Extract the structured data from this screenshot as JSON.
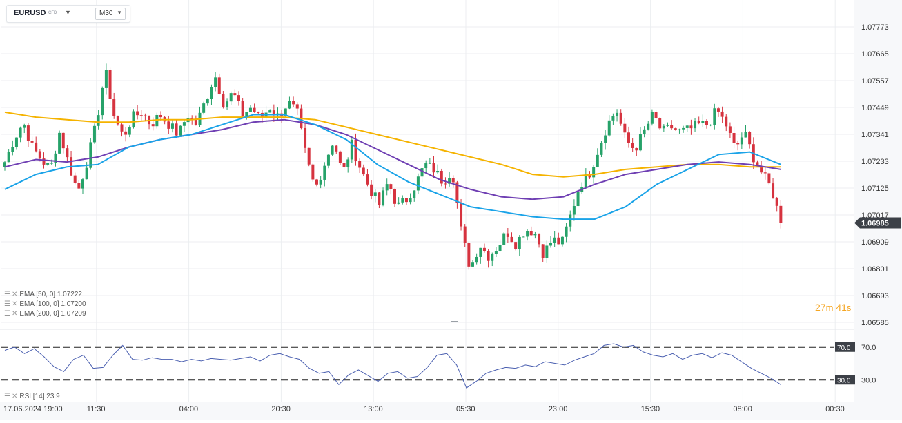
{
  "toolbar": {
    "symbol": "EURUSD",
    "instrument_type": "CFD",
    "symbol_dropdown_icon": "caret-down",
    "timeframe": "M30",
    "timeframe_dropdown_icon": "caret-down"
  },
  "price_axis": {
    "labels": [
      "1.07773",
      "1.07665",
      "1.07557",
      "1.07449",
      "1.07341",
      "1.07233",
      "1.07125",
      "1.07017",
      "1.06909",
      "1.06801",
      "1.06693",
      "1.06585"
    ]
  },
  "current_price": {
    "label": "1.06985",
    "value": 1.06985
  },
  "time_axis": {
    "labels": [
      "17.06.2024  19:00",
      "11:30",
      "04:00",
      "20:30",
      "13:00",
      "05:30",
      "23:00",
      "15:30",
      "08:00",
      "00:30"
    ]
  },
  "countdown": {
    "minutes": "27",
    "m_unit": "m",
    "seconds": "41",
    "s_unit": "s"
  },
  "indicators": [
    {
      "text": "EMA  [50,  0]  1.07222",
      "value": 1.07222,
      "color": "#1aa3e8"
    },
    {
      "text": "EMA  [100,  0]  1.07200",
      "value": 1.072,
      "color": "#6f3fb3"
    },
    {
      "text": "EMA  [200,  0]  1.07209",
      "value": 1.07209,
      "color": "#f5b300"
    }
  ],
  "rsi": {
    "text": "RSI  [14]  23.9",
    "value": 23.9,
    "upper_label": "70.0",
    "lower_label": "30.0",
    "upper_axis_label": "70.0",
    "lower_axis_label": "30.0"
  },
  "colors": {
    "bull": "#26a269",
    "bear": "#d6333f",
    "rsi_line": "#4a5fb0",
    "grid": "#eceef1",
    "countdown": "#f5a623"
  },
  "chart_data": {
    "type": "candlestick",
    "symbol": "EURUSD",
    "timeframe": "M30",
    "y_range": [
      1.06585,
      1.07881
    ],
    "anchor_closes": [
      1.0723,
      1.0732,
      1.0739,
      1.0729,
      1.0724,
      1.072,
      1.0735,
      1.0722,
      1.0711,
      1.0723,
      1.0738,
      1.076,
      1.0741,
      1.0733,
      1.0741,
      1.0743,
      1.0738,
      1.0742,
      1.0738,
      1.0734,
      1.0742,
      1.0738,
      1.0748,
      1.0758,
      1.0746,
      1.0751,
      1.0742,
      1.0745,
      1.074,
      1.0745,
      1.0741,
      1.0747,
      1.0743,
      1.0725,
      1.0712,
      1.0722,
      1.0732,
      1.0718,
      1.073,
      1.072,
      1.0712,
      1.0706,
      1.0715,
      1.0705,
      1.0708,
      1.0714,
      1.0722,
      1.072,
      1.0715,
      1.072,
      1.0695,
      1.068,
      1.069,
      1.0685,
      1.0689,
      1.0695,
      1.069,
      1.0696,
      1.0695,
      1.0686,
      1.0692,
      1.069,
      1.0702,
      1.0714,
      1.0718,
      1.0728,
      1.0738,
      1.0744,
      1.0732,
      1.0728,
      1.0735,
      1.0742,
      1.0735,
      1.0737,
      1.0735,
      1.0736,
      1.0738,
      1.0738,
      1.0744,
      1.0738,
      1.0728,
      1.0735,
      1.0725,
      1.0718,
      1.0712,
      1.0699
    ],
    "ema50": [
      1.0712,
      1.0718,
      1.0721,
      1.0722,
      1.0729,
      1.0732,
      1.0734,
      1.0738,
      1.0742,
      1.0742,
      1.0738,
      1.0732,
      1.0722,
      1.0715,
      1.071,
      1.0705,
      1.0703,
      1.0701,
      1.07,
      1.07,
      1.0705,
      1.0714,
      1.072,
      1.0726,
      1.0727,
      1.0722
    ],
    "ema100": [
      1.0721,
      1.0724,
      1.0723,
      1.0725,
      1.0729,
      1.0732,
      1.0734,
      1.0736,
      1.0739,
      1.074,
      1.0738,
      1.0734,
      1.0728,
      1.0722,
      1.0716,
      1.0712,
      1.0709,
      1.0708,
      1.0709,
      1.0714,
      1.0718,
      1.072,
      1.0722,
      1.0723,
      1.0722,
      1.072
    ],
    "ema200": [
      1.0743,
      1.0741,
      1.074,
      1.0739,
      1.0739,
      1.074,
      1.074,
      1.0741,
      1.0741,
      1.0741,
      1.074,
      1.0737,
      1.0734,
      1.0731,
      1.0728,
      1.0725,
      1.0722,
      1.0718,
      1.0717,
      1.0718,
      1.072,
      1.0721,
      1.0722,
      1.0722,
      1.0721,
      1.0721
    ],
    "rsi_range": [
      10,
      90
    ],
    "rsi_levels": [
      70,
      30
    ],
    "rsi_values": [
      66,
      70,
      62,
      68,
      58,
      46,
      40,
      55,
      60,
      44,
      45,
      60,
      72,
      55,
      54,
      57,
      55,
      55,
      52,
      55,
      53,
      56,
      55,
      54,
      56,
      58,
      53,
      60,
      62,
      58,
      55,
      44,
      38,
      40,
      24,
      36,
      42,
      35,
      28,
      38,
      40,
      32,
      34,
      45,
      60,
      62,
      48,
      20,
      28,
      38,
      42,
      45,
      44,
      48,
      46,
      52,
      50,
      48,
      54,
      58,
      62,
      72,
      74,
      70,
      72,
      64,
      60,
      58,
      62,
      55,
      60,
      62,
      57,
      63,
      60,
      52,
      44,
      38,
      32,
      24
    ]
  }
}
